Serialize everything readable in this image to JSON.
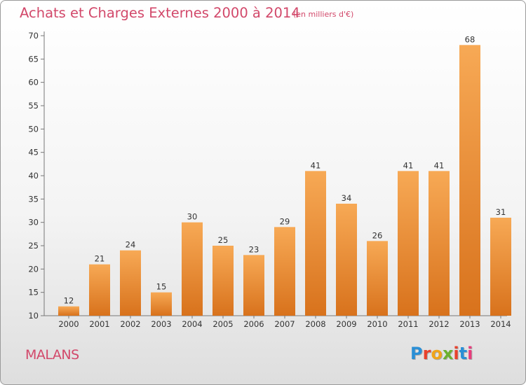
{
  "header": {
    "title": "Achats et Charges Externes 2000 à 2014",
    "subtitle": "(en milliers d'€)"
  },
  "footer": {
    "commune": "MALANS",
    "logo_text": "Proxiti",
    "logo_colors": [
      "#2a8fd6",
      "#e8412c",
      "#f0a41a",
      "#6cb12f",
      "#e8412c",
      "#2a8fd6",
      "#e83c7c"
    ]
  },
  "colors": {
    "bar_light": "#f7a955",
    "bar_dark": "#d8721c",
    "accent": "#d2486a"
  },
  "chart_data": {
    "type": "bar",
    "title": "Achats et Charges Externes 2000 à 2014",
    "subtitle": "(en milliers d'€)",
    "categories": [
      "2000",
      "2001",
      "2002",
      "2003",
      "2004",
      "2005",
      "2006",
      "2007",
      "2008",
      "2009",
      "2010",
      "2011",
      "2012",
      "2013",
      "2014"
    ],
    "values": [
      12,
      21,
      24,
      15,
      30,
      25,
      23,
      29,
      41,
      34,
      26,
      41,
      41,
      68,
      31
    ],
    "ylim": [
      10,
      70
    ],
    "yticks": [
      10,
      15,
      20,
      25,
      30,
      35,
      40,
      45,
      50,
      55,
      60,
      65,
      70
    ],
    "grid": false,
    "xlabel": "",
    "ylabel": ""
  }
}
